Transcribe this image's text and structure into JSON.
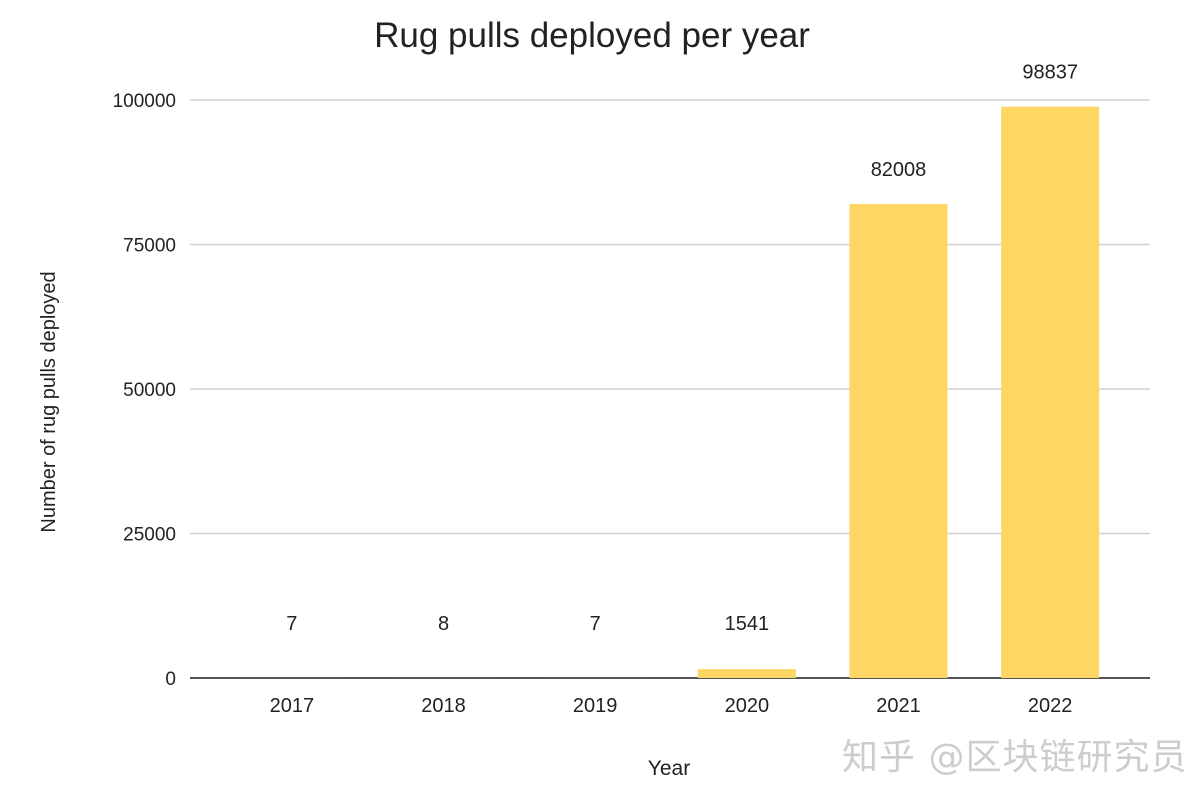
{
  "chart_data": {
    "type": "bar",
    "title": "Rug pulls deployed per year",
    "xlabel": "Year",
    "ylabel": "Number of rug pulls deployed",
    "categories": [
      "2017",
      "2018",
      "2019",
      "2020",
      "2021",
      "2022"
    ],
    "values": [
      7,
      8,
      7,
      1541,
      82008,
      98837
    ],
    "data_labels": [
      "7",
      "8",
      "7",
      "1541",
      "82008",
      "98837"
    ],
    "ylim": [
      0,
      100000
    ],
    "yticks": [
      0,
      25000,
      50000,
      75000,
      100000
    ],
    "ytick_labels": [
      "0",
      "25000",
      "50000",
      "75000",
      "100000"
    ],
    "grid": true,
    "legend": "none",
    "bar_color": "#fdd663"
  },
  "watermark": "知乎 @区块链研究员"
}
